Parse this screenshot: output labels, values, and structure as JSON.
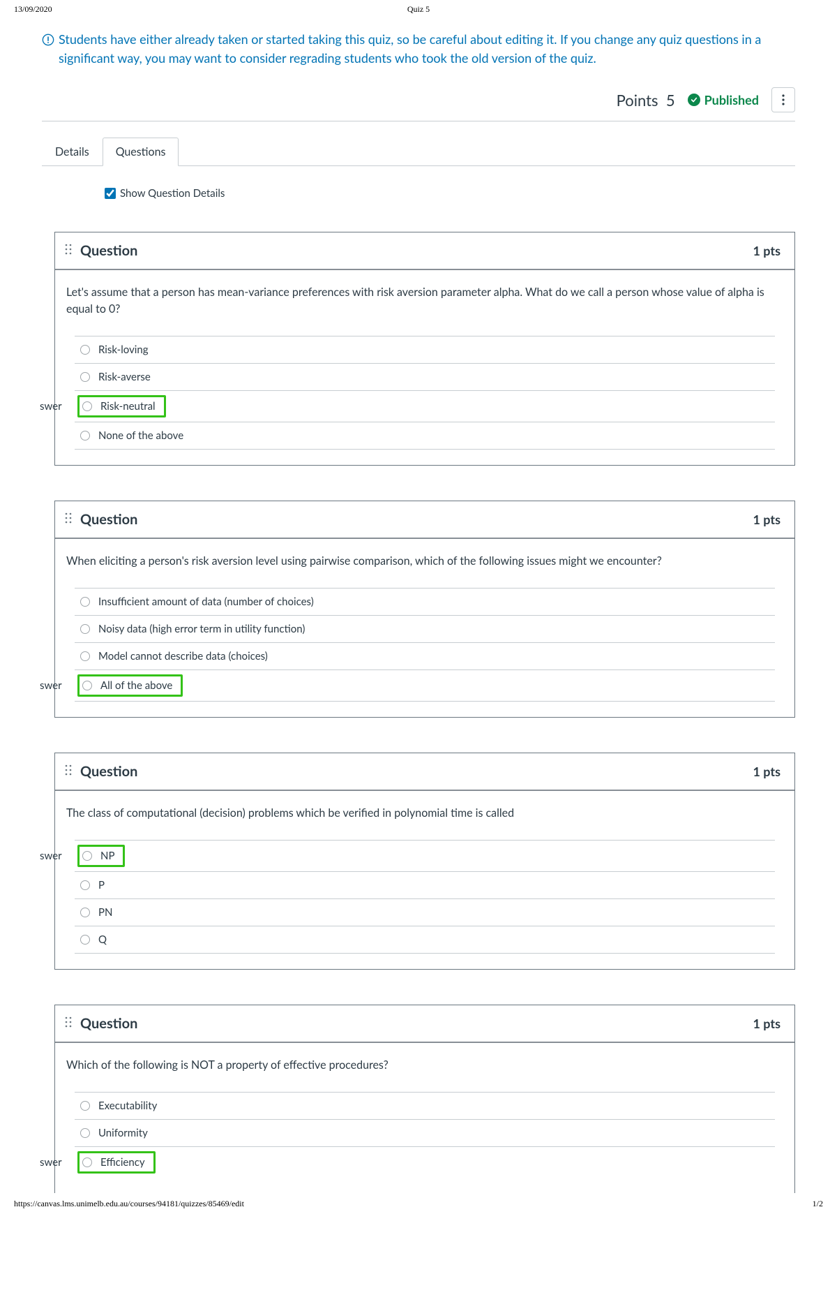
{
  "print_header": {
    "date": "13/09/2020",
    "title": "Quiz 5"
  },
  "alert": "Students have either already taken or started taking this quiz, so be careful about editing it. If you change any quiz questions in a significant way, you may want to consider regrading students who took the old version of the quiz.",
  "points_label": "Points",
  "points_value": "5",
  "published_label": "Published",
  "tabs": {
    "details": "Details",
    "questions": "Questions"
  },
  "show_details_label": "Show Question Details",
  "swer_label": "swer",
  "questions": [
    {
      "title": "Question",
      "pts": "1 pts",
      "prompt": "Let's assume that a person has mean-variance preferences with risk aversion parameter alpha. What do we call a person whose value of alpha is equal to 0?",
      "answers": [
        "Risk-loving",
        "Risk-averse",
        "Risk-neutral",
        "None of the above"
      ],
      "correct": 2
    },
    {
      "title": "Question",
      "pts": "1 pts",
      "prompt": "When eliciting a person's risk aversion level using pairwise comparison, which of the following issues might we encounter?",
      "answers": [
        "Insufficient amount of data (number of choices)",
        "Noisy data (high error term in utility function)",
        "Model cannot describe data (choices)",
        "All of the above"
      ],
      "correct": 3
    },
    {
      "title": "Question",
      "pts": "1 pts",
      "prompt": "The class of computational (decision) problems which be verified in polynomial time is called",
      "answers": [
        "NP",
        "P",
        "PN",
        "Q"
      ],
      "correct": 0
    },
    {
      "title": "Question",
      "pts": "1 pts",
      "prompt": "Which of the following is NOT a property of effective procedures?",
      "answers": [
        "Executability",
        "Uniformity",
        "Efficiency"
      ],
      "correct": 2
    }
  ],
  "print_footer": {
    "url": "https://canvas.lms.unimelb.edu.au/courses/94181/quizzes/85469/edit",
    "page": "1/2"
  }
}
